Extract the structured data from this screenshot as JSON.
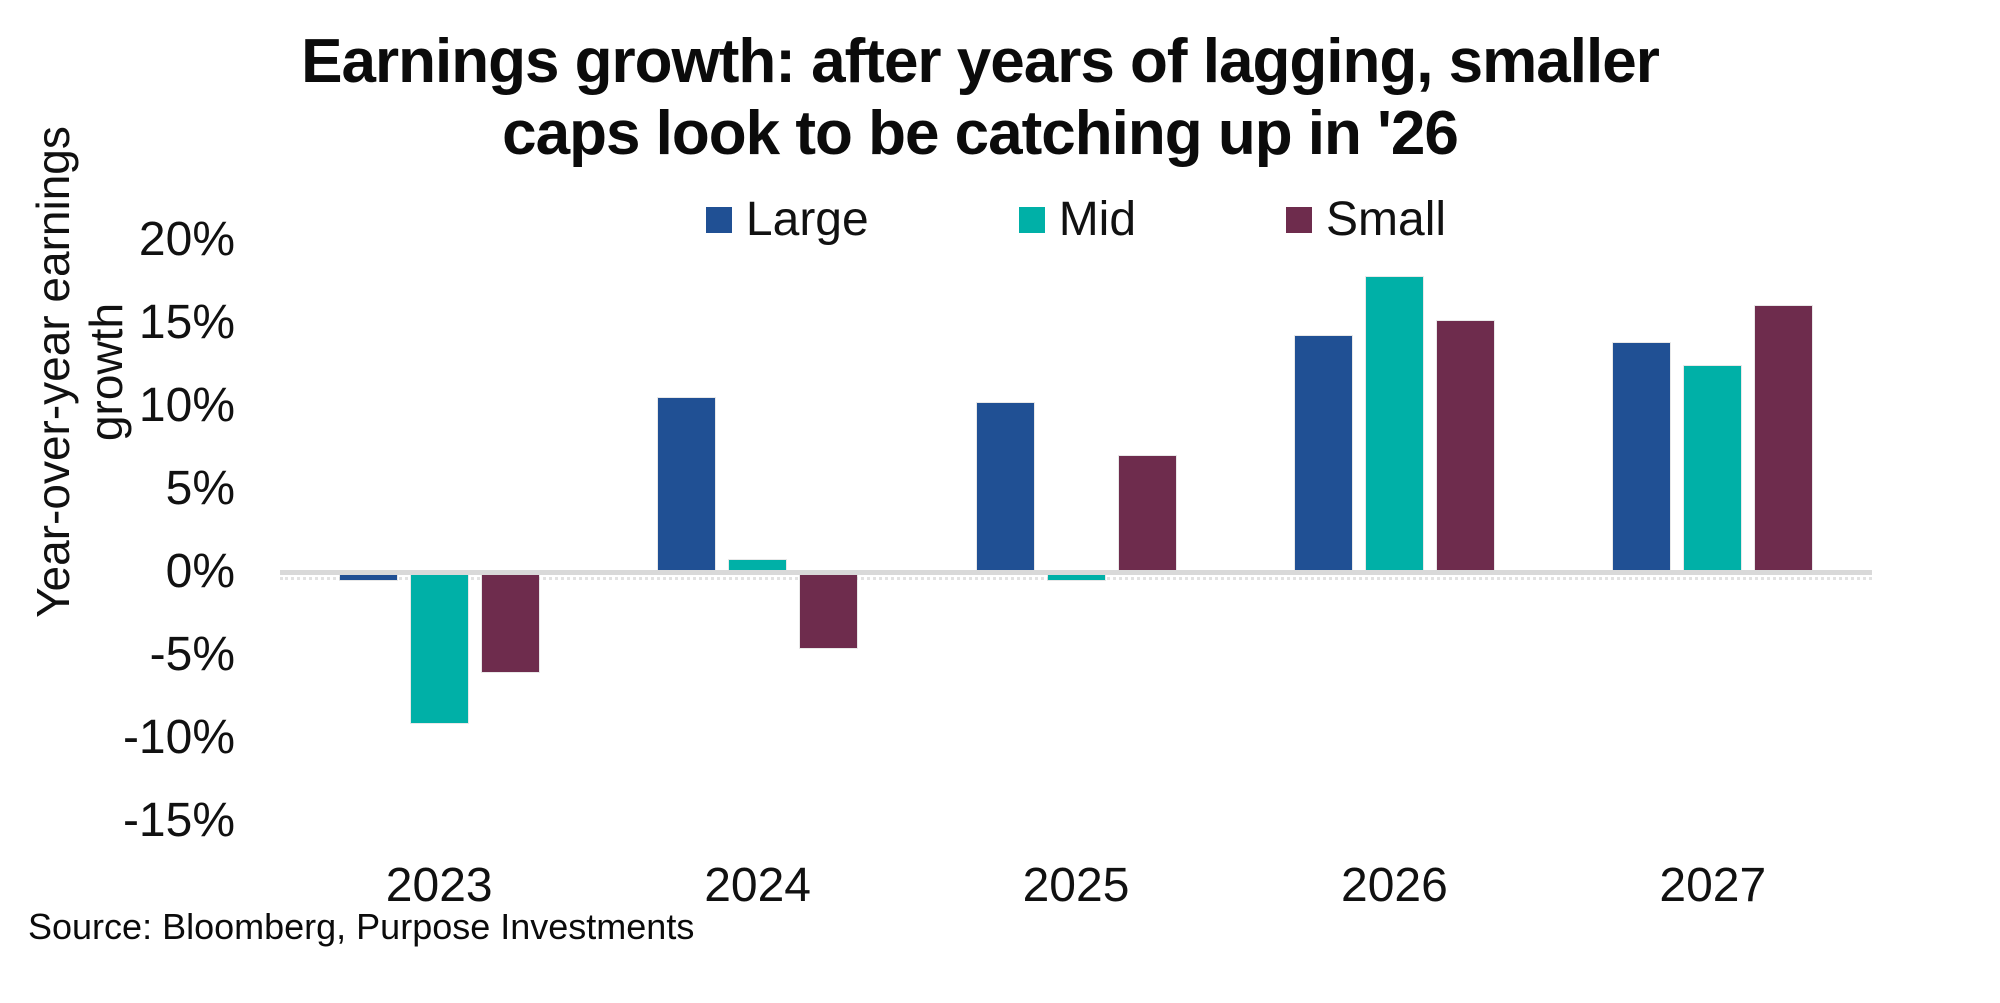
{
  "chart": {
    "title_lines": [
      "Earnings growth: after years of lagging, smaller",
      "caps look to be catching up in '26"
    ],
    "y_axis_title_lines": [
      "Year-over-year earnings",
      "growth"
    ],
    "source": "Source: Bloomberg, Purpose Investments"
  },
  "chart_data": {
    "type": "bar",
    "title": "Earnings growth: after years of lagging, smaller caps look to be catching up in '26",
    "xlabel": "",
    "ylabel": "Year-over-year earnings growth",
    "categories": [
      "2023",
      "2024",
      "2025",
      "2026",
      "2027"
    ],
    "series": [
      {
        "name": "Large",
        "color": "#205094",
        "values": [
          -0.5,
          10.5,
          10.2,
          14.2,
          13.8
        ]
      },
      {
        "name": "Mid",
        "color": "#00B0A7",
        "values": [
          -9.1,
          0.7,
          -0.5,
          17.8,
          12.4
        ]
      },
      {
        "name": "Small",
        "color": "#6E2C4D",
        "values": [
          -6.0,
          -4.6,
          7.0,
          15.1,
          16.0
        ]
      }
    ],
    "ylim": [
      -15,
      20
    ],
    "yticks": [
      {
        "label": "20%",
        "value": 20
      },
      {
        "label": "15%",
        "value": 15
      },
      {
        "label": "10%",
        "value": 10
      },
      {
        "label": "5%",
        "value": 5
      },
      {
        "label": "0%",
        "value": 0
      },
      {
        "label": "-5%",
        "value": -5
      },
      {
        "label": "-10%",
        "value": -10
      },
      {
        "label": "-15%",
        "value": -15
      }
    ],
    "grid": false,
    "legend_position": "top",
    "axis_line_color": "#D9D9D9",
    "source": "Source: Bloomberg, Purpose Investments"
  }
}
